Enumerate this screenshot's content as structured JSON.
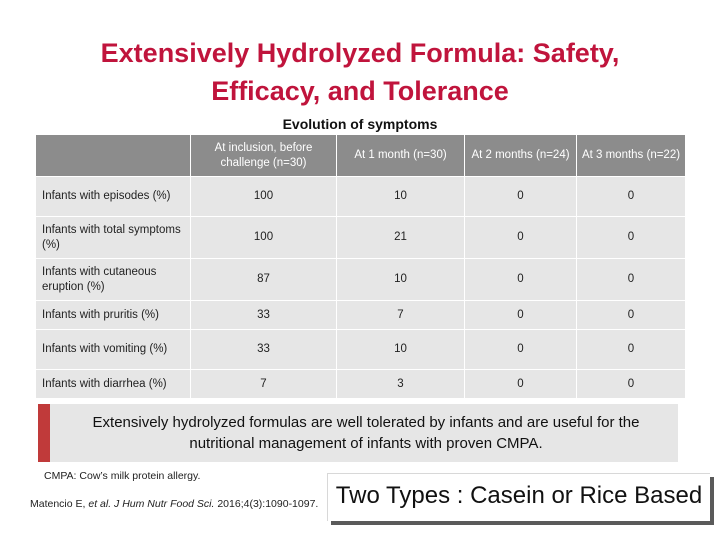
{
  "title": {
    "line1": "Extensively Hydrolyzed Formula: Safety,",
    "line2": "Efficacy, and Tolerance"
  },
  "table": {
    "caption": "Evolution of symptoms",
    "headers": [
      "",
      "At inclusion, before challenge (n=30)",
      "At 1 month (n=30)",
      "At 2 months (n=24)",
      "At 3 months (n=22)"
    ],
    "rows": [
      {
        "label": "Infants with episodes (%)",
        "values": [
          "100",
          "10",
          "0",
          "0"
        ]
      },
      {
        "label": "Infants with total symptoms (%)",
        "values": [
          "100",
          "21",
          "0",
          "0"
        ]
      },
      {
        "label": "Infants with cutaneous eruption (%)",
        "values": [
          "87",
          "10",
          "0",
          "0"
        ]
      },
      {
        "label": "Infants with pruritis (%)",
        "values": [
          "33",
          "7",
          "0",
          "0"
        ]
      },
      {
        "label": "Infants with vomiting (%)",
        "values": [
          "33",
          "10",
          "0",
          "0"
        ]
      },
      {
        "label": "Infants with diarrhea (%)",
        "values": [
          "7",
          "3",
          "0",
          "0"
        ]
      }
    ]
  },
  "callout": {
    "text": "Extensively hydrolyzed formulas are well tolerated by infants and are useful for the nutritional management of infants with proven CMPA."
  },
  "footnote": "CMPA: Cow’s milk protein allergy.",
  "reference": {
    "authors": "Matencio E, ",
    "etal": "et al.",
    "journal": " J Hum Nutr Food Sci.",
    "details": " 2016;4(3):1090-1097."
  },
  "highlight": "Two Types : Casein or Rice Based",
  "colors": {
    "title": "#c0143c",
    "header_bg": "#8c8c8c",
    "cell_bg": "#e6e6e6",
    "accent_bar": "#c03a3a"
  }
}
